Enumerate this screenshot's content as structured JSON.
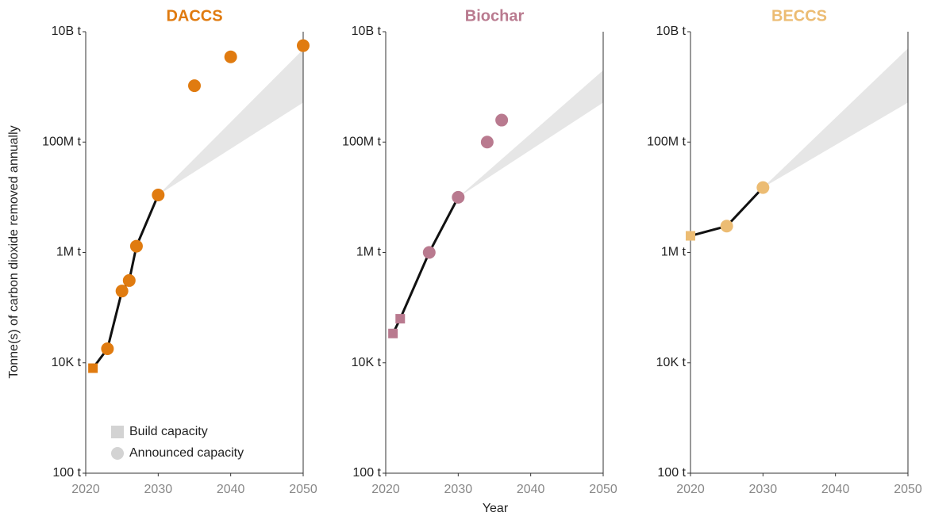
{
  "y_label": "Tonne(s) of carbon dioxide removed annually",
  "x_label": "Year",
  "chart_data": [
    {
      "type": "scatter",
      "title": "DACCS",
      "color": "#e07b10",
      "log_y": true,
      "legend": "lower left",
      "legend_color": "#d3d3d3",
      "xlim": [
        2020,
        2050
      ],
      "xticks": [
        2020,
        2030,
        2040,
        2050
      ],
      "ylim": [
        100,
        10000000000
      ],
      "yticks": [
        {
          "value": 100,
          "label": "100 t"
        },
        {
          "value": 10000,
          "label": "10K t"
        },
        {
          "value": 1000000,
          "label": "1M t"
        },
        {
          "value": 100000000,
          "label": "100M t"
        },
        {
          "value": 10000000000,
          "label": "10B t"
        }
      ],
      "series": [
        {
          "name": "Build capacity",
          "marker": "square",
          "x": [
            2021
          ],
          "values": [
            8000
          ]
        },
        {
          "name": "Announced capacity",
          "marker": "circle",
          "x": [
            2023,
            2025,
            2026,
            2027,
            2030,
            2035,
            2040,
            2050
          ],
          "values": [
            18000,
            200000,
            310000,
            1300000,
            11000000,
            1050000000,
            3500000000,
            5600000000
          ]
        }
      ],
      "projection": {
        "x": [
          2030,
          2050
        ],
        "low": [
          11000000,
          520000000
        ],
        "high": [
          11000000,
          4800000000
        ]
      }
    },
    {
      "type": "scatter",
      "title": "Biochar",
      "color": "#b97a8f",
      "log_y": true,
      "xlim": [
        2020,
        2050
      ],
      "xticks": [
        2020,
        2030,
        2040,
        2050
      ],
      "ylim": [
        100,
        10000000000
      ],
      "yticks": [
        {
          "value": 100,
          "label": "100 t"
        },
        {
          "value": 10000,
          "label": "10K t"
        },
        {
          "value": 1000000,
          "label": "1M t"
        },
        {
          "value": 100000000,
          "label": "100M t"
        },
        {
          "value": 10000000000,
          "label": "10B t"
        }
      ],
      "series": [
        {
          "name": "Build capacity",
          "marker": "square",
          "x": [
            2021,
            2022
          ],
          "values": [
            34000,
            63000
          ]
        },
        {
          "name": "Announced capacity",
          "marker": "circle",
          "x": [
            2026,
            2030,
            2034,
            2036
          ],
          "values": [
            1000000,
            10000000,
            100000000,
            250000000
          ]
        }
      ],
      "projection": {
        "x": [
          2030,
          2050
        ],
        "low": [
          10000000,
          520000000
        ],
        "high": [
          10000000,
          2000000000
        ]
      }
    },
    {
      "type": "scatter",
      "title": "BECCS",
      "color": "#ecbc73",
      "log_y": true,
      "xlim": [
        2020,
        2050
      ],
      "xticks": [
        2020,
        2030,
        2040,
        2050
      ],
      "ylim": [
        100,
        10000000000
      ],
      "yticks": [
        {
          "value": 100,
          "label": "100 t"
        },
        {
          "value": 10000,
          "label": "10K t"
        },
        {
          "value": 1000000,
          "label": "1M t"
        },
        {
          "value": 100000000,
          "label": "100M t"
        },
        {
          "value": 10000000000,
          "label": "10B t"
        }
      ],
      "series": [
        {
          "name": "Build capacity",
          "marker": "square",
          "x": [
            2020
          ],
          "values": [
            2000000
          ]
        },
        {
          "name": "Announced capacity",
          "marker": "circle",
          "x": [
            2025,
            2030
          ],
          "values": [
            3000000,
            15000000
          ]
        }
      ],
      "projection": {
        "x": [
          2030,
          2050
        ],
        "low": [
          15000000,
          520000000
        ],
        "high": [
          15000000,
          5000000000
        ]
      }
    }
  ]
}
